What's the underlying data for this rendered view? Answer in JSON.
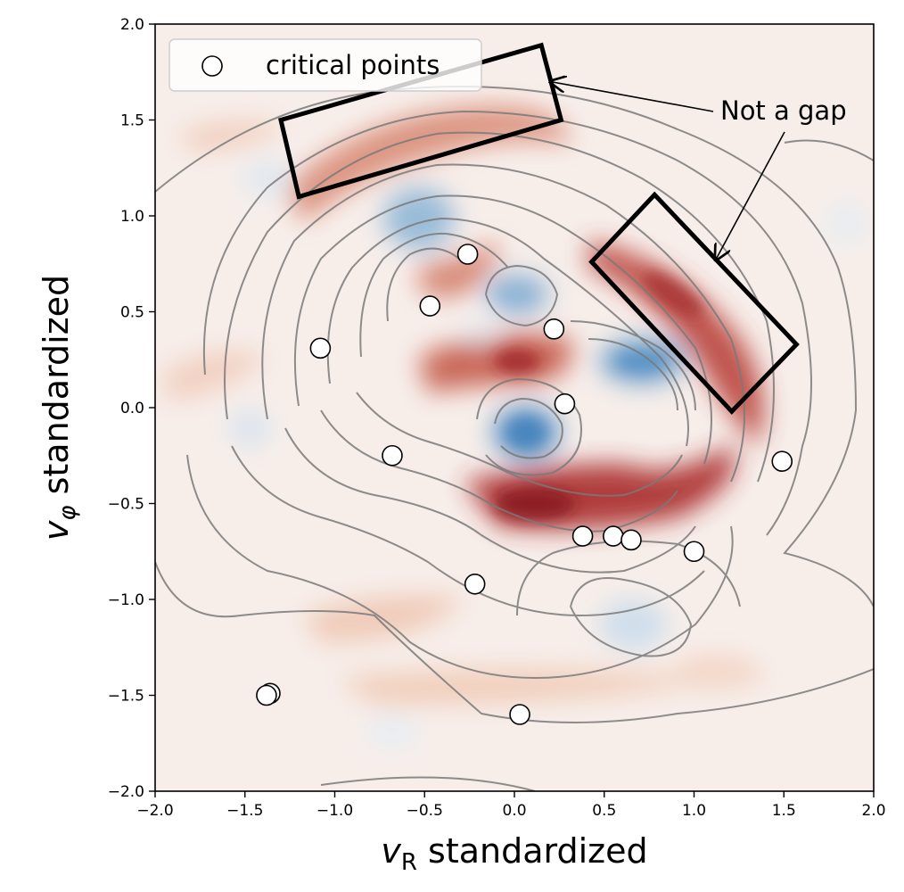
{
  "chart_data": {
    "type": "scatter",
    "title": "",
    "xlabel_main": "v",
    "xlabel_sub": "R",
    "xlabel_rest": " standardized",
    "ylabel_main": "v",
    "ylabel_sub": "φ",
    "ylabel_rest": " standardized",
    "xlim": [
      -2.0,
      2.0
    ],
    "ylim": [
      -2.0,
      2.0
    ],
    "xticks": [
      -2.0,
      -1.5,
      -1.0,
      -0.5,
      0.0,
      0.5,
      1.0,
      1.5,
      2.0
    ],
    "yticks": [
      -2.0,
      -1.5,
      -1.0,
      -0.5,
      0.0,
      0.5,
      1.0,
      1.5,
      2.0
    ],
    "xtick_labels": [
      "−2.0",
      "−1.5",
      "−1.0",
      "−0.5",
      "0.0",
      "0.5",
      "1.0",
      "1.5",
      "2.0"
    ],
    "ytick_labels": [
      "−2.0",
      "−1.5",
      "−1.0",
      "−0.5",
      "0.0",
      "0.5",
      "1.0",
      "1.5",
      "2.0"
    ],
    "legend": {
      "position": "top-left",
      "entries": [
        "critical points"
      ]
    },
    "series": [
      {
        "name": "critical points",
        "marker": "circle-open",
        "points": [
          [
            -0.26,
            0.8
          ],
          [
            -0.47,
            0.53
          ],
          [
            0.22,
            0.41
          ],
          [
            -1.08,
            0.31
          ],
          [
            0.28,
            0.02
          ],
          [
            -0.68,
            -0.25
          ],
          [
            1.49,
            -0.28
          ],
          [
            0.38,
            -0.67
          ],
          [
            0.55,
            -0.67
          ],
          [
            0.65,
            -0.69
          ],
          [
            1.0,
            -0.75
          ],
          [
            -0.22,
            -0.92
          ],
          [
            -1.36,
            -1.49
          ],
          [
            -1.38,
            -1.5
          ],
          [
            0.03,
            -1.6
          ]
        ]
      }
    ],
    "annotation": {
      "text": "Not a gap",
      "targets": [
        [
          0.2,
          1.7
        ],
        [
          1.12,
          0.77
        ]
      ],
      "boxes": [
        [
          [
            -1.3,
            1.5
          ],
          [
            0.15,
            1.89
          ],
          [
            0.26,
            1.5
          ],
          [
            -1.2,
            1.1
          ]
        ],
        [
          [
            0.43,
            0.76
          ],
          [
            0.78,
            1.11
          ],
          [
            1.57,
            0.33
          ],
          [
            1.21,
            -0.02
          ]
        ]
      ]
    },
    "background": {
      "type": "contourf+contour",
      "colormap": "RdBu_r",
      "colors": {
        "red": "#9b1a24",
        "blue": "#3d7db8",
        "neutral": "#f7efeb",
        "contour": "#7a7a7a"
      }
    }
  }
}
